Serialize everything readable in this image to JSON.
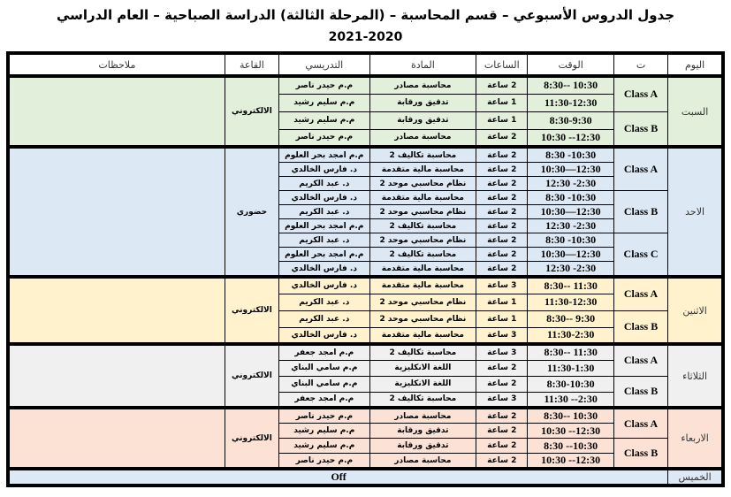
{
  "title": "جدول الدروس الأسبوعي – قسم المحاسبة  – (المرحلة الثالثة) الدراسة الصباحية – العام الدراسي",
  "year": "2021-2020",
  "headers": {
    "day": "اليوم",
    "class": "ت",
    "time": "الوقت",
    "hours": "الساعات",
    "subject": "المادة",
    "teacher": "التدريسي",
    "hall": "القاعة",
    "notes": "ملاحظات"
  },
  "days": [
    {
      "name": "السبت",
      "hall": "الالكتروني",
      "bg": "#e2efda",
      "row_h": 20,
      "classes": [
        {
          "name": "Class A",
          "sessions": [
            {
              "time": "8:30-- 10:30",
              "hours": "2 ساعة",
              "subject": "محاسبة مصادر",
              "teacher": "م.م حيدر ناصر"
            },
            {
              "time": "11:30-12:30",
              "hours": "1 ساعة",
              "subject": "تدقيق ورقابة",
              "teacher": "م.م سليم رشيد"
            }
          ]
        },
        {
          "name": "Class B",
          "sessions": [
            {
              "time": "8:30-9:30",
              "hours": "1 ساعة",
              "subject": "تدقيق ورقابة",
              "teacher": "م.م سليم رشيد"
            },
            {
              "time": "10:30 --12:30",
              "hours": "2 ساعة",
              "subject": "محاسبة مصادر",
              "teacher": "م.م حيدر ناصر"
            }
          ]
        }
      ]
    },
    {
      "name": "الاحد",
      "hall": "حضوري",
      "bg": "#dde8f5",
      "row_h": 14,
      "classes": [
        {
          "name": "Class A",
          "sessions": [
            {
              "time": "8:30 -10:30",
              "hours": "2 ساعة",
              "subject": "محاسبة تكاليف 2",
              "teacher": "م.م امجد بحر العلوم"
            },
            {
              "time": "10:30—12:30",
              "hours": "2 ساعة",
              "subject": "محاسبة مالية متقدمة",
              "teacher": "د. فارس الخالدي"
            },
            {
              "time": "12:30 -2:30",
              "hours": "2 ساعة",
              "subject": "نظام محاسبي موحد 2",
              "teacher": "د. عبد الكريم"
            }
          ]
        },
        {
          "name": "Class B",
          "sessions": [
            {
              "time": "8:30 -10:30",
              "hours": "2 ساعة",
              "subject": "محاسبة مالية متقدمة",
              "teacher": "د. فارس الخالدي"
            },
            {
              "time": "10:30—12:30",
              "hours": "2 ساعة",
              "subject": "نظام محاسبي موحد 2",
              "teacher": "د. عبد الكريم"
            },
            {
              "time": "12:30 -2:30",
              "hours": "2 ساعة",
              "subject": "محاسبة تكاليف 2",
              "teacher": "م.م امجد بحر العلوم"
            }
          ]
        },
        {
          "name": "Class C",
          "sessions": [
            {
              "time": "8:30 -10:30",
              "hours": "2 ساعة",
              "subject": "نظام محاسبي موحد 2",
              "teacher": "د. عبد الكريم"
            },
            {
              "time": "10:30—12:30",
              "hours": "2 ساعة",
              "subject": "محاسبة تكاليف 2",
              "teacher": "م.م امجد بحر العلوم"
            },
            {
              "time": "12:30 -2:30",
              "hours": "2 ساعة",
              "subject": "محاسبة مالية متقدمة",
              "teacher": "د. فارس الخالدي"
            }
          ]
        }
      ]
    },
    {
      "name": "الاثنين",
      "hall": "الالكتروني",
      "bg": "#fff2cc",
      "row_h": 19,
      "classes": [
        {
          "name": "Class A",
          "sessions": [
            {
              "time": "8:30-- 11:30",
              "hours": "3 ساعة",
              "subject": "محاسبة مالية متقدمة",
              "teacher": "د. فارس الخالدي"
            },
            {
              "time": "11:30-12:30",
              "hours": "1 ساعة",
              "subject": "نظام محاسبي موحد 2",
              "teacher": "د. عبد الكريم"
            }
          ]
        },
        {
          "name": "Class B",
          "sessions": [
            {
              "time": "8:30-- 9:30",
              "hours": "1 ساعة",
              "subject": "نظام محاسبي موحد 2",
              "teacher": "د. عبد الكريم"
            },
            {
              "time": "11:30-2:30",
              "hours": "3 ساعة",
              "subject": "محاسبة مالية متقدمة",
              "teacher": "د. فارس الخالدي"
            }
          ]
        }
      ]
    },
    {
      "name": "الثلاثاء",
      "hall": "الالكتروني",
      "bg": "#f0f0f0",
      "row_h": 18,
      "classes": [
        {
          "name": "Class A",
          "sessions": [
            {
              "time": "8:30-- 11:30",
              "hours": "3 ساعة",
              "subject": "محاسبة تكاليف 2",
              "teacher": "م.م امجد جعفر"
            },
            {
              "time": "11:30-1:30",
              "hours": "2 ساعة",
              "subject": "اللغة الانكليزية",
              "teacher": "م.م سامي البناي"
            }
          ]
        },
        {
          "name": "Class B",
          "sessions": [
            {
              "time": "8:30-10:30",
              "hours": "2 ساعة",
              "subject": "اللغة الانكليزية",
              "teacher": "م.م سامي البناي"
            },
            {
              "time": "11:30 --2:30",
              "hours": "3 ساعة",
              "subject": "محاسبة تكاليف 2",
              "teacher": "م.م امجد جعفر"
            }
          ]
        }
      ]
    },
    {
      "name": "الاربعاء",
      "hall": "الالكتروني",
      "bg": "#fbe2d5",
      "row_h": 17,
      "classes": [
        {
          "name": "Class A",
          "sessions": [
            {
              "time": "8:30-- 10:30",
              "hours": "2 ساعة",
              "subject": "محاسبة مصادر",
              "teacher": "م.م حيدر ناصر"
            },
            {
              "time": "10:30 --12:30",
              "hours": "2 ساعة",
              "subject": "تدقيق ورقابة",
              "teacher": "م.م سليم رشيد"
            }
          ]
        },
        {
          "name": "Class B",
          "sessions": [
            {
              "time": "8:30 --10:30",
              "hours": "2 ساعة",
              "subject": "تدقيق ورقابة",
              "teacher": "م.م سليم رشيد"
            },
            {
              "time": "10:30 --12:30",
              "hours": "2 ساعة",
              "subject": "محاسبة مصادر",
              "teacher": "م.م حيدر ناصر"
            }
          ]
        }
      ]
    }
  ],
  "thursday": {
    "name": "الخميس",
    "status": "Off",
    "bg": "#dde8f5"
  }
}
